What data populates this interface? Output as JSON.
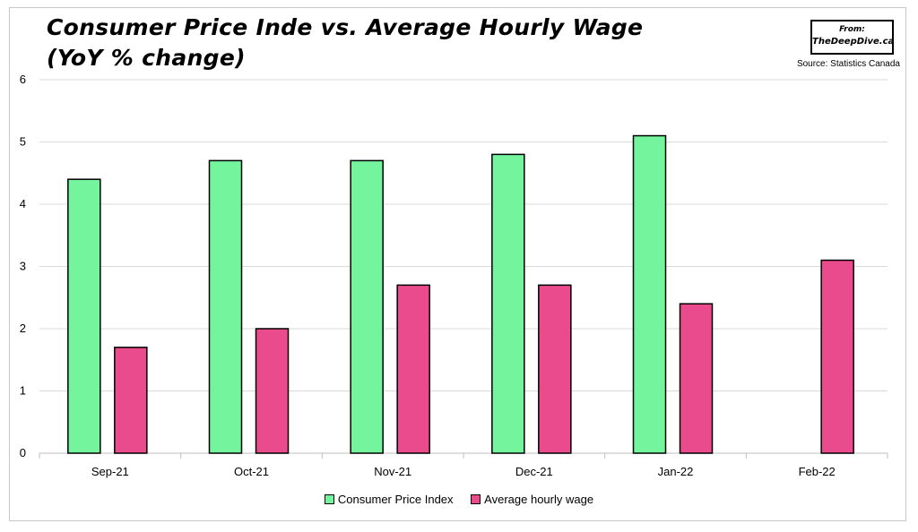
{
  "chart_data": {
    "type": "bar",
    "title_line1": "Consumer Price Inde vs. Average Hourly Wage",
    "title_line2": "(YoY % change)",
    "source_box": {
      "from": "From:",
      "site": "TheDeepDive.ca"
    },
    "source_note": "Source: Statistics Canada",
    "categories": [
      "Sep-21",
      "Oct-21",
      "Nov-21",
      "Dec-21",
      "Jan-22",
      "Feb-22"
    ],
    "series": [
      {
        "name": "Consumer Price Index",
        "color": "#74f59d",
        "values": [
          4.4,
          4.7,
          4.7,
          4.8,
          5.1,
          null
        ]
      },
      {
        "name": "Average hourly wage",
        "color": "#ea4b8c",
        "values": [
          1.7,
          2.0,
          2.7,
          2.7,
          2.4,
          3.1
        ]
      }
    ],
    "ylim": [
      0,
      6
    ],
    "yticks": [
      0,
      1,
      2,
      3,
      4,
      5,
      6
    ],
    "grid": true,
    "legend_position": "bottom"
  }
}
